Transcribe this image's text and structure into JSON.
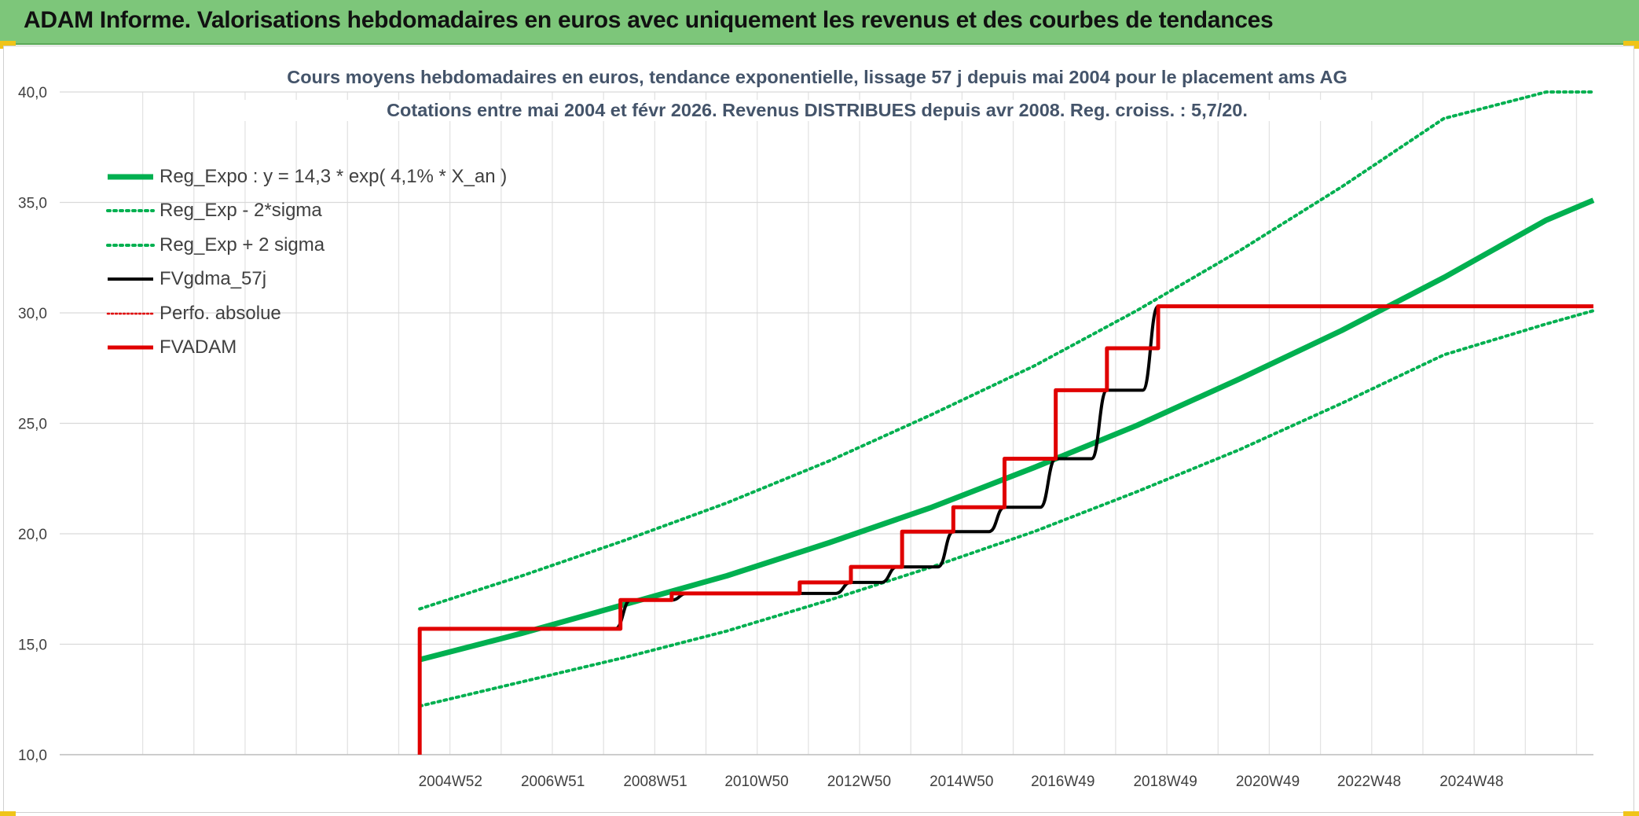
{
  "banner": {
    "title": "ADAM Informe. Valorisations hebdomadaires en euros avec uniquement les revenus et des courbes de tendances"
  },
  "colors": {
    "banner_bg": "#7dc67a",
    "accent_yellow": "#f0c419",
    "green": "#00b050",
    "red": "#e00000",
    "black": "#000000",
    "title_text": "#44546a"
  },
  "chart_data": {
    "type": "line",
    "title": "Cours moyens hebdomadaires en euros, tendance exponentielle, lissage 57 j depuis mai 2004 pour le placement ams AG",
    "subtitle": "Cotations entre mai 2004 et févr 2026. Revenus DISTRIBUES depuis avr 2008. Reg. croiss. : 5,7/20.",
    "xlabel": "",
    "ylabel": "",
    "ylim": [
      10,
      40
    ],
    "xlim": [
      1997.35,
      2027.3
    ],
    "yticks": [
      "10,0",
      "15,0",
      "20,0",
      "25,0",
      "30,0",
      "35,0",
      "40,0"
    ],
    "xticks": [
      {
        "label": "2004W52",
        "x": 2004.98
      },
      {
        "label": "2006W51",
        "x": 2006.98
      },
      {
        "label": "2008W51",
        "x": 2008.98
      },
      {
        "label": "2010W50",
        "x": 2010.96
      },
      {
        "label": "2012W50",
        "x": 2012.96
      },
      {
        "label": "2014W50",
        "x": 2014.96
      },
      {
        "label": "2016W49",
        "x": 2016.94
      },
      {
        "label": "2018W49",
        "x": 2018.94
      },
      {
        "label": "2020W49",
        "x": 2020.94
      },
      {
        "label": "2022W48",
        "x": 2022.92
      },
      {
        "label": "2024W48",
        "x": 2024.92
      }
    ],
    "grid": true,
    "legend_position": "top-left",
    "series": [
      {
        "name": "Reg_Expo : y = 14,3 * exp( 4,1% *  X_an )",
        "style": "solid-thick",
        "color": "#00b050",
        "x": [
          2004.38,
          2006.38,
          2008.38,
          2010.38,
          2012.38,
          2014.38,
          2016.38,
          2018.38,
          2020.38,
          2022.38,
          2024.38,
          2026.38,
          2027.3
        ],
        "y": [
          14.3,
          15.5,
          16.8,
          18.1,
          19.6,
          21.2,
          23.0,
          24.9,
          27.0,
          29.2,
          31.6,
          34.2,
          35.1
        ]
      },
      {
        "name": "Reg_Exp - 2*sigma",
        "style": "dotted",
        "color": "#00b050",
        "x": [
          2004.38,
          2006.38,
          2008.38,
          2010.38,
          2012.38,
          2014.38,
          2016.38,
          2018.38,
          2020.38,
          2022.38,
          2024.38,
          2026.38,
          2027.3
        ],
        "y": [
          12.2,
          13.3,
          14.4,
          15.6,
          17.0,
          18.5,
          20.1,
          21.9,
          23.8,
          25.9,
          28.1,
          29.5,
          30.1
        ]
      },
      {
        "name": "Reg_Exp + 2 sigma",
        "style": "dotted",
        "color": "#00b050",
        "x": [
          2004.38,
          2006.38,
          2008.38,
          2010.38,
          2012.38,
          2014.38,
          2016.38,
          2018.38,
          2020.38,
          2022.38,
          2024.38,
          2026.38,
          2027.3
        ],
        "y": [
          16.6,
          18.1,
          19.7,
          21.4,
          23.3,
          25.4,
          27.6,
          30.1,
          32.8,
          35.7,
          38.8,
          40.0,
          40.0
        ]
      },
      {
        "name": "FVgdma_57j",
        "style": "solid",
        "color": "#000000",
        "x": [
          2004.38,
          2008.2,
          2008.5,
          2009.3,
          2009.6,
          2012.5,
          2012.8,
          2013.4,
          2013.7,
          2014.5,
          2014.8,
          2015.5,
          2015.8,
          2016.5,
          2016.8,
          2017.5,
          2017.8,
          2018.5,
          2018.8,
          2027.3
        ],
        "y": [
          15.7,
          15.7,
          17.0,
          17.0,
          17.3,
          17.3,
          17.8,
          17.8,
          18.5,
          18.5,
          20.1,
          20.1,
          21.2,
          21.2,
          23.4,
          23.4,
          26.5,
          26.5,
          30.3,
          30.3
        ]
      },
      {
        "name": "Perfo. absolue",
        "style": "dotted",
        "color": "#e00000",
        "x": [],
        "y": []
      },
      {
        "name": "FVADAM",
        "style": "step",
        "color": "#e00000",
        "x": [
          2004.38,
          2004.38,
          2008.3,
          2008.3,
          2009.3,
          2009.3,
          2011.8,
          2011.8,
          2012.8,
          2012.8,
          2013.8,
          2013.8,
          2014.8,
          2014.8,
          2015.8,
          2015.8,
          2016.8,
          2016.8,
          2017.8,
          2017.8,
          2018.8,
          2018.8,
          2019.3,
          2027.3
        ],
        "y": [
          10.0,
          15.7,
          15.7,
          17.0,
          17.0,
          17.3,
          17.3,
          17.8,
          17.8,
          18.5,
          18.5,
          20.1,
          20.1,
          21.2,
          21.2,
          23.4,
          23.4,
          26.5,
          26.5,
          28.4,
          28.4,
          30.3,
          30.3,
          30.3
        ]
      }
    ]
  }
}
